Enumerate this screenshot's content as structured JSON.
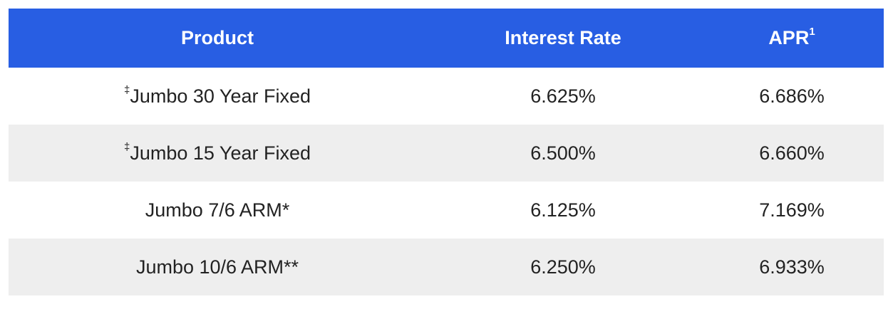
{
  "table": {
    "header": {
      "product": "Product",
      "rate": "Interest Rate",
      "apr": {
        "text": "APR",
        "sup": "1"
      }
    },
    "rows": [
      {
        "note": "‡",
        "product": "Jumbo 30 Year Fixed",
        "rate": "6.625%",
        "apr": "6.686%"
      },
      {
        "note": "‡",
        "product": "Jumbo 15 Year Fixed",
        "rate": "6.500%",
        "apr": "6.660%"
      },
      {
        "product": "Jumbo 7/6 ARM*",
        "rate": "6.125%",
        "apr": "7.169%"
      },
      {
        "product": "Jumbo 10/6 ARM**",
        "rate": "6.250%",
        "apr": "6.933%"
      }
    ]
  }
}
